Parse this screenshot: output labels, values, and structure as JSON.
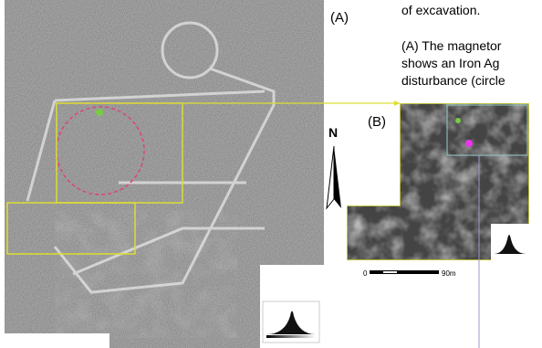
{
  "caption_lines": [
    "of excavation.",
    "(A) The magnetor",
    "shows an Iron Ag",
    "disturbance (circle"
  ],
  "panels": [
    {
      "label": "(A)"
    },
    {
      "label": "(B)"
    }
  ],
  "north_label": "N",
  "scale": {
    "start": "0",
    "end": "90m"
  }
}
